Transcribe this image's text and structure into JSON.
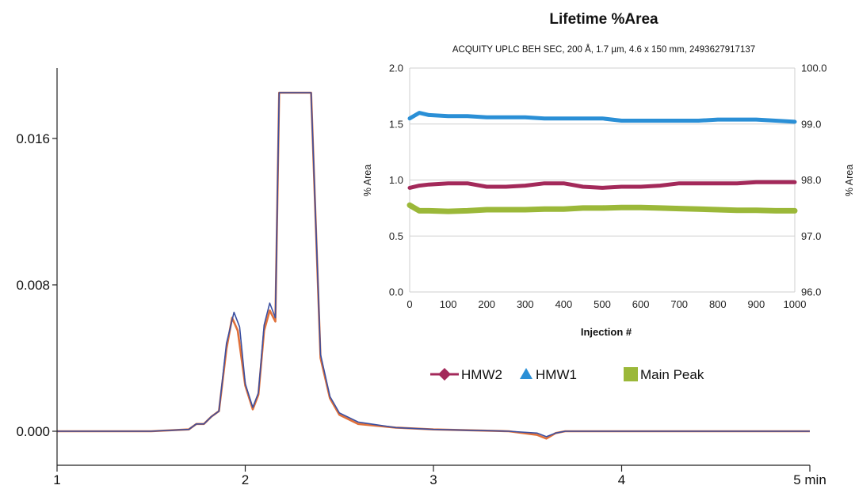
{
  "chart_data": [
    {
      "type": "line",
      "title": "",
      "xlabel": "",
      "ylabel": "",
      "x_unit": "min",
      "xlim": [
        1,
        5
      ],
      "ylim": [
        -0.0016,
        0.019
      ],
      "x_ticks": [
        "1",
        "2",
        "3",
        "4",
        "5 min"
      ],
      "y_ticks": [
        "0.000",
        "0.008",
        "0.016"
      ],
      "y_tick_values": [
        0.0,
        0.008,
        0.016
      ],
      "series": [
        {
          "color": "#e0703a",
          "x": [
            1.0,
            1.5,
            1.7,
            1.74,
            1.78,
            1.82,
            1.86,
            1.9,
            1.93,
            1.96,
            2.0,
            2.04,
            2.07,
            2.1,
            2.13,
            2.16,
            2.18,
            2.2,
            2.3,
            2.35,
            2.4,
            2.45,
            2.5,
            2.6,
            2.8,
            3.0,
            3.4,
            3.55,
            3.6,
            3.65,
            3.7,
            4.0,
            4.5,
            5.0
          ],
          "y": [
            0.0,
            0.0,
            0.0001,
            0.0004,
            0.0004,
            0.0008,
            0.0011,
            0.0045,
            0.0062,
            0.0055,
            0.0025,
            0.0012,
            0.002,
            0.0055,
            0.0066,
            0.006,
            0.0185,
            0.0185,
            0.0185,
            0.0185,
            0.004,
            0.0018,
            0.0009,
            0.0004,
            0.0002,
            0.0001,
            0.0,
            -0.0002,
            -0.0004,
            -0.0001,
            0.0,
            0.0,
            0.0,
            0.0
          ]
        },
        {
          "color": "#3b4fa0",
          "x": [
            1.0,
            1.5,
            1.7,
            1.74,
            1.78,
            1.82,
            1.86,
            1.9,
            1.94,
            1.97,
            2.0,
            2.04,
            2.07,
            2.1,
            2.13,
            2.16,
            2.18,
            2.2,
            2.3,
            2.35,
            2.4,
            2.45,
            2.5,
            2.6,
            2.8,
            3.0,
            3.4,
            3.55,
            3.6,
            3.65,
            3.7,
            4.0,
            4.5,
            5.0
          ],
          "y": [
            0.0,
            0.0,
            0.0001,
            0.0004,
            0.0004,
            0.0008,
            0.0011,
            0.0048,
            0.0065,
            0.0057,
            0.0026,
            0.0013,
            0.0021,
            0.0058,
            0.007,
            0.0062,
            0.0185,
            0.0185,
            0.0185,
            0.0185,
            0.0042,
            0.0019,
            0.001,
            0.0005,
            0.0002,
            0.0001,
            0.0,
            -0.0001,
            -0.0003,
            -0.0001,
            0.0,
            0.0,
            0.0,
            0.0
          ]
        }
      ]
    },
    {
      "type": "scatter",
      "title": "Lifetime %Area",
      "subtitle": "ACQUITY UPLC BEH SEC, 200 Å, 1.7 µm, 4.6 x 150 mm, 2493627917137",
      "xlabel": "Injection #",
      "ylabel": "% Area",
      "y2label": "% Area",
      "xlim": [
        0,
        1000
      ],
      "ylim": [
        0.0,
        2.0
      ],
      "y2lim": [
        96.0,
        100.0
      ],
      "x_ticks": [
        "0",
        "100",
        "200",
        "300",
        "400",
        "500",
        "600",
        "700",
        "800",
        "900",
        "1000"
      ],
      "y_ticks": [
        "0.0",
        "0.5",
        "1.0",
        "1.5",
        "2.0"
      ],
      "y2_ticks": [
        "96.0",
        "97.0",
        "98.0",
        "99.0",
        "100.0"
      ],
      "grid": true,
      "legend_position": "bottom",
      "series": [
        {
          "name": "HMW2",
          "axis": "left",
          "marker": "diamond",
          "color": "#a3295a",
          "x": [
            0,
            25,
            50,
            100,
            150,
            200,
            250,
            300,
            350,
            400,
            450,
            500,
            550,
            600,
            650,
            700,
            750,
            800,
            850,
            900,
            950,
            1000
          ],
          "y": [
            0.93,
            0.95,
            0.96,
            0.97,
            0.97,
            0.94,
            0.94,
            0.95,
            0.97,
            0.97,
            0.94,
            0.93,
            0.94,
            0.94,
            0.95,
            0.97,
            0.97,
            0.97,
            0.97,
            0.98,
            0.98,
            0.98
          ]
        },
        {
          "name": "HMW1",
          "axis": "left",
          "marker": "triangle",
          "color": "#2a8fd6",
          "x": [
            0,
            25,
            50,
            100,
            150,
            200,
            250,
            300,
            350,
            400,
            450,
            500,
            550,
            600,
            650,
            700,
            750,
            800,
            850,
            900,
            950,
            1000
          ],
          "y": [
            1.55,
            1.6,
            1.58,
            1.57,
            1.57,
            1.56,
            1.56,
            1.56,
            1.55,
            1.55,
            1.55,
            1.55,
            1.53,
            1.53,
            1.53,
            1.53,
            1.53,
            1.54,
            1.54,
            1.54,
            1.53,
            1.52
          ]
        },
        {
          "name": "Main Peak",
          "axis": "right",
          "marker": "square",
          "color": "#9bb839",
          "x": [
            0,
            25,
            50,
            100,
            150,
            200,
            250,
            300,
            350,
            400,
            450,
            500,
            550,
            600,
            650,
            700,
            750,
            800,
            850,
            900,
            950,
            1000
          ],
          "y": [
            97.55,
            97.45,
            97.45,
            97.44,
            97.45,
            97.47,
            97.47,
            97.47,
            97.48,
            97.48,
            97.5,
            97.5,
            97.51,
            97.51,
            97.5,
            97.49,
            97.48,
            97.47,
            97.46,
            97.46,
            97.45,
            97.45
          ]
        }
      ]
    }
  ]
}
